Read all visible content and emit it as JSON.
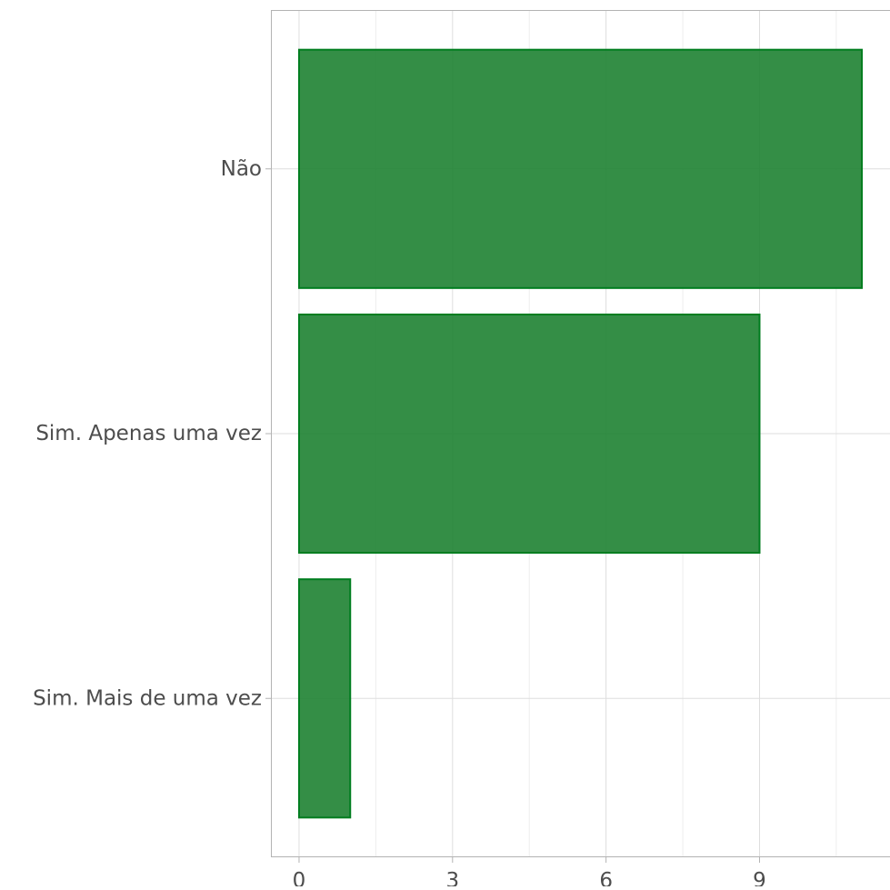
{
  "chart_data": {
    "type": "bar",
    "orientation": "horizontal",
    "categories": [
      "Sim. Mais de uma vez",
      "Sim. Apenas uma vez",
      "Não"
    ],
    "values": [
      1,
      9,
      11
    ],
    "xlim": [
      -0.55,
      11.55
    ],
    "xticks": [
      0,
      3,
      6,
      9
    ],
    "title": "",
    "xlabel": "",
    "ylabel": "",
    "bar_color": "#1e8232",
    "bar_edge_color": "#007d1f",
    "grid": true,
    "legend": "none"
  }
}
